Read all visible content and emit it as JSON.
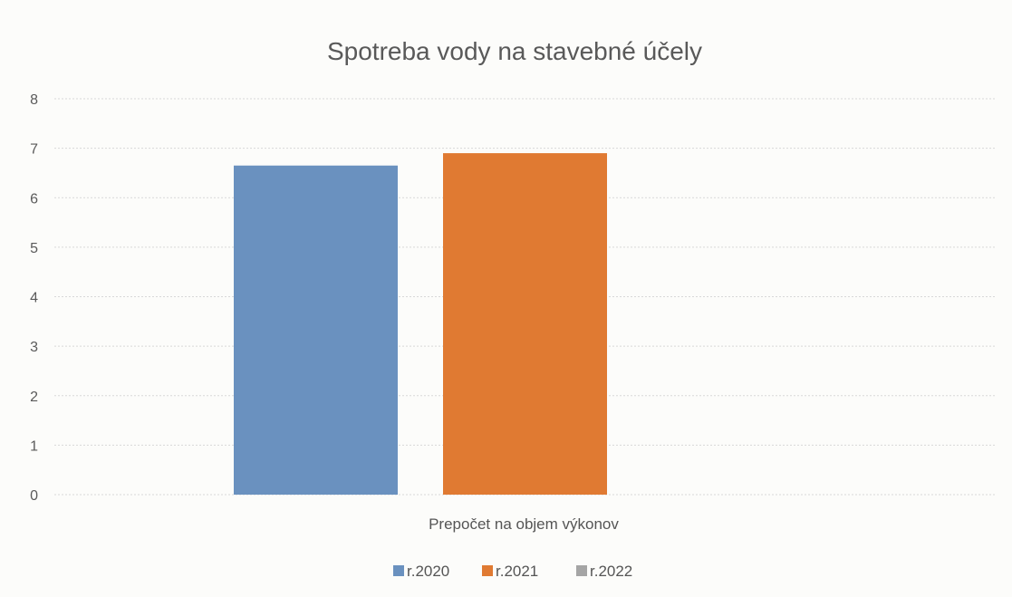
{
  "chart_data": {
    "type": "bar",
    "title": "Spotreba vody na stavebné účely",
    "xlabel": "Prepočet na objem výkonov",
    "ylabel": "",
    "categories": [
      "Prepočet na objem výkonov"
    ],
    "series": [
      {
        "name": "r.2020",
        "color": "#6a91bf",
        "values": [
          6.65
        ]
      },
      {
        "name": "r.2021",
        "color": "#e07a32",
        "values": [
          6.9
        ]
      },
      {
        "name": "r.2022",
        "color": "#a5a5a5",
        "values": [
          0
        ]
      }
    ],
    "ylim": [
      0,
      8
    ],
    "yticks": [
      "0",
      "1",
      "2",
      "3",
      "4",
      "5",
      "6",
      "7",
      "8"
    ],
    "grid": true,
    "legend_position": "bottom"
  }
}
